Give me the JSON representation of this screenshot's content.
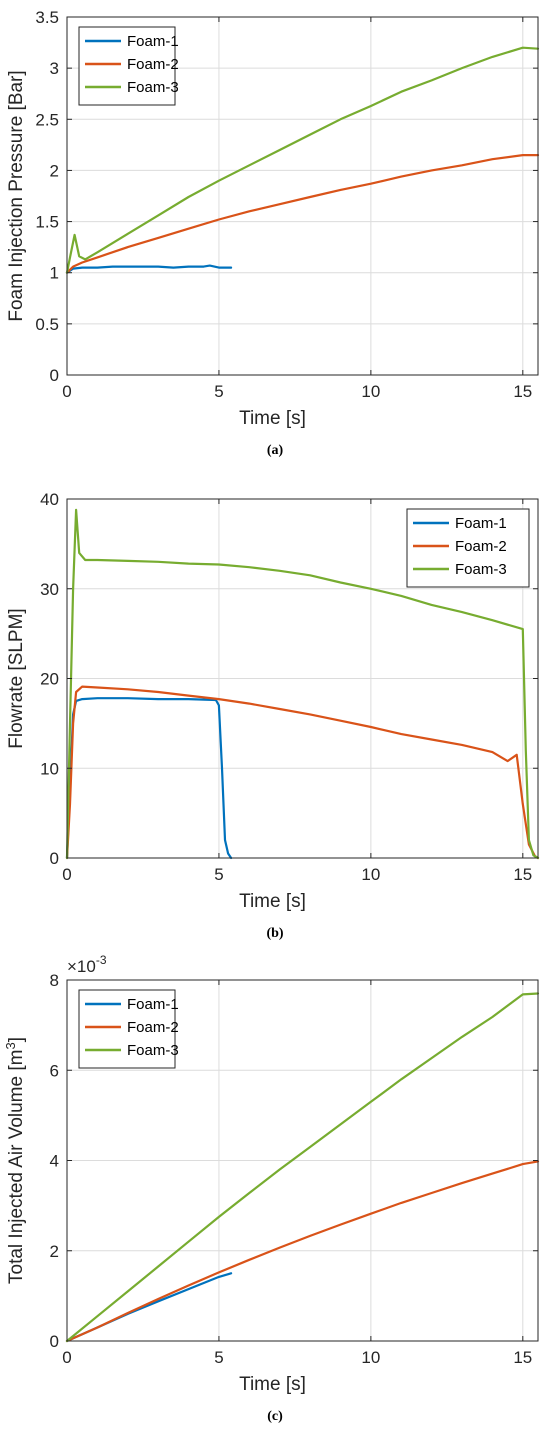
{
  "chart_data": [
    {
      "type": "line",
      "caption": "(a)",
      "xlabel": "Time [s]",
      "ylabel": "Foam Injection Pressure [Bar]",
      "xlim": [
        0,
        15.5
      ],
      "ylim": [
        0,
        3.5
      ],
      "xticks": [
        0,
        5,
        10,
        15
      ],
      "yticks": [
        0,
        0.5,
        1,
        1.5,
        2,
        2.5,
        3,
        3.5
      ],
      "xtick_labels": [
        "0",
        "5",
        "10",
        "15"
      ],
      "ytick_labels": [
        "0",
        "0.5",
        "1",
        "1.5",
        "2",
        "2.5",
        "3",
        "3.5"
      ],
      "exponent_label": "",
      "grid": true,
      "legend_position": "top-left",
      "series": [
        {
          "name": "Foam-1",
          "color": "#0072BD",
          "x": [
            0,
            0.2,
            0.5,
            1,
            1.5,
            2,
            2.5,
            3,
            3.5,
            4,
            4.5,
            4.7,
            5,
            5.4
          ],
          "y": [
            1.0,
            1.04,
            1.05,
            1.05,
            1.06,
            1.06,
            1.06,
            1.06,
            1.05,
            1.06,
            1.06,
            1.07,
            1.05,
            1.05
          ]
        },
        {
          "name": "Foam-2",
          "color": "#D95319",
          "x": [
            0,
            0.2,
            0.5,
            1,
            2,
            3,
            4,
            5,
            6,
            7,
            8,
            9,
            10,
            11,
            12,
            13,
            14,
            15,
            15.5
          ],
          "y": [
            1.0,
            1.06,
            1.1,
            1.15,
            1.25,
            1.34,
            1.43,
            1.52,
            1.6,
            1.67,
            1.74,
            1.81,
            1.87,
            1.94,
            2.0,
            2.05,
            2.11,
            2.15,
            2.15
          ]
        },
        {
          "name": "Foam-3",
          "color": "#77AC30",
          "x": [
            0,
            0.1,
            0.25,
            0.4,
            0.6,
            1,
            2,
            3,
            4,
            5,
            6,
            7,
            8,
            9,
            10,
            11,
            12,
            13,
            14,
            15,
            15.5
          ],
          "y": [
            1.0,
            1.15,
            1.37,
            1.16,
            1.13,
            1.2,
            1.38,
            1.56,
            1.74,
            1.9,
            2.05,
            2.2,
            2.35,
            2.5,
            2.63,
            2.77,
            2.88,
            3.0,
            3.11,
            3.2,
            3.19
          ]
        }
      ]
    },
    {
      "type": "line",
      "caption": "(b)",
      "xlabel": "Time [s]",
      "ylabel": "Flowrate [SLPM]",
      "xlim": [
        0,
        15.5
      ],
      "ylim": [
        0,
        40
      ],
      "xticks": [
        0,
        5,
        10,
        15
      ],
      "yticks": [
        0,
        10,
        20,
        30,
        40
      ],
      "xtick_labels": [
        "0",
        "5",
        "10",
        "15"
      ],
      "ytick_labels": [
        "0",
        "10",
        "20",
        "30",
        "40"
      ],
      "exponent_label": "",
      "grid": true,
      "legend_position": "top-right",
      "series": [
        {
          "name": "Foam-1",
          "color": "#0072BD",
          "x": [
            0,
            0.1,
            0.2,
            0.3,
            0.5,
            1,
            2,
            3,
            4,
            4.9,
            5.0,
            5.1,
            5.2,
            5.3,
            5.4
          ],
          "y": [
            0,
            8,
            16,
            17.5,
            17.7,
            17.8,
            17.8,
            17.7,
            17.7,
            17.6,
            17.0,
            10,
            2,
            0.5,
            0
          ]
        },
        {
          "name": "Foam-2",
          "color": "#D95319",
          "x": [
            0,
            0.1,
            0.2,
            0.3,
            0.5,
            1,
            2,
            3,
            4,
            5,
            6,
            7,
            8,
            9,
            10,
            11,
            12,
            13,
            14,
            14.5,
            14.8,
            15,
            15.2,
            15.4,
            15.5
          ],
          "y": [
            0,
            6,
            15,
            18.5,
            19.1,
            19.0,
            18.8,
            18.5,
            18.1,
            17.7,
            17.2,
            16.6,
            16.0,
            15.3,
            14.6,
            13.8,
            13.2,
            12.6,
            11.8,
            10.8,
            11.5,
            6,
            1.5,
            0.2,
            0
          ]
        },
        {
          "name": "Foam-3",
          "color": "#77AC30",
          "x": [
            0,
            0.1,
            0.2,
            0.3,
            0.4,
            0.6,
            1,
            2,
            3,
            4,
            5,
            6,
            7,
            8,
            9,
            10,
            11,
            12,
            13,
            14,
            15,
            15.1,
            15.2,
            15.35,
            15.5
          ],
          "y": [
            0,
            15,
            30,
            38.8,
            34,
            33.2,
            33.2,
            33.1,
            33.0,
            32.8,
            32.7,
            32.4,
            32.0,
            31.5,
            30.7,
            30.0,
            29.2,
            28.2,
            27.4,
            26.5,
            25.5,
            12,
            2,
            0.3,
            0
          ]
        }
      ]
    },
    {
      "type": "line",
      "caption": "(c)",
      "xlabel": "Time [s]",
      "ylabel": "Total Injected Air Volume [m",
      "ylabel_superscript": "3",
      "ylabel_suffix": "]",
      "xlim": [
        0,
        15.5
      ],
      "ylim": [
        0,
        8
      ],
      "xticks": [
        0,
        5,
        10,
        15
      ],
      "yticks": [
        0,
        2,
        4,
        6,
        8
      ],
      "xtick_labels": [
        "0",
        "5",
        "10",
        "15"
      ],
      "ytick_labels": [
        "0",
        "2",
        "4",
        "6",
        "8"
      ],
      "exponent_label": "×10",
      "exponent_power": "-3",
      "grid": true,
      "legend_position": "top-left",
      "series": [
        {
          "name": "Foam-1",
          "color": "#0072BD",
          "x": [
            0,
            1,
            2,
            3,
            4,
            5,
            5.4
          ],
          "y": [
            0,
            0.3,
            0.6,
            0.88,
            1.15,
            1.42,
            1.5
          ]
        },
        {
          "name": "Foam-2",
          "color": "#D95319",
          "x": [
            0,
            1,
            2,
            3,
            4,
            5,
            6,
            7,
            8,
            9,
            10,
            11,
            12,
            13,
            14,
            15,
            15.5
          ],
          "y": [
            0,
            0.3,
            0.62,
            0.93,
            1.23,
            1.52,
            1.8,
            2.07,
            2.33,
            2.58,
            2.82,
            3.06,
            3.28,
            3.5,
            3.71,
            3.92,
            3.98
          ]
        },
        {
          "name": "Foam-3",
          "color": "#77AC30",
          "x": [
            0,
            1,
            2,
            3,
            4,
            5,
            6,
            7,
            8,
            9,
            10,
            11,
            12,
            13,
            14,
            15,
            15.5
          ],
          "y": [
            0,
            0.55,
            1.1,
            1.65,
            2.2,
            2.75,
            3.28,
            3.8,
            4.3,
            4.8,
            5.3,
            5.8,
            6.27,
            6.74,
            7.18,
            7.68,
            7.7
          ]
        }
      ]
    }
  ]
}
